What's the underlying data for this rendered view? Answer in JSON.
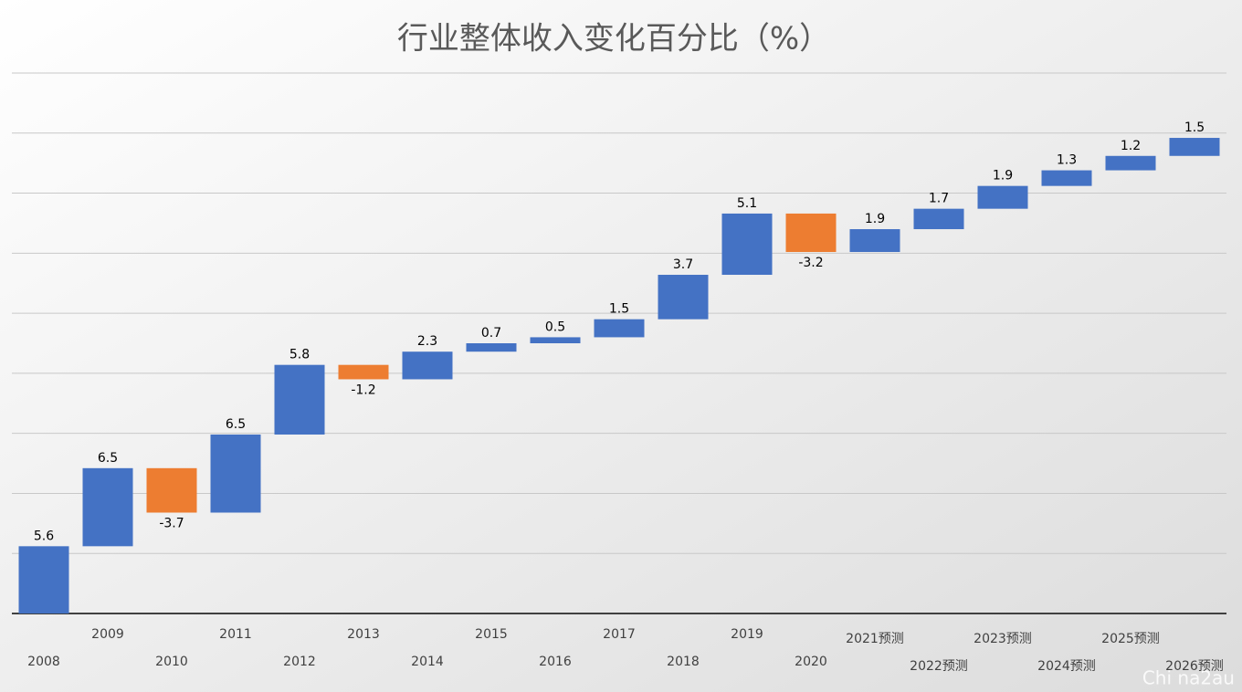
{
  "chart_data": {
    "type": "waterfall",
    "title": "行业整体收入变化百分比（%）",
    "categories": [
      "2008",
      "2009",
      "2010",
      "2011",
      "2012",
      "2013",
      "2014",
      "2015",
      "2016",
      "2017",
      "2018",
      "2019",
      "2020",
      "2021预测",
      "2022预测",
      "2023预测",
      "2024预测",
      "2025预测",
      "2026预测"
    ],
    "values": [
      5.6,
      6.5,
      -3.7,
      6.5,
      5.8,
      -1.2,
      2.3,
      0.7,
      0.5,
      1.5,
      3.7,
      5.1,
      -3.2,
      1.9,
      1.7,
      1.9,
      1.3,
      1.2,
      1.5
    ],
    "increase_color": "#4472c4",
    "decrease_color": "#ed7d31",
    "ylim": [
      0,
      45
    ],
    "yticks": [
      0,
      5,
      10,
      15,
      20,
      25,
      30,
      35,
      40,
      45
    ],
    "grid": true
  },
  "watermark": "Chi na2au"
}
